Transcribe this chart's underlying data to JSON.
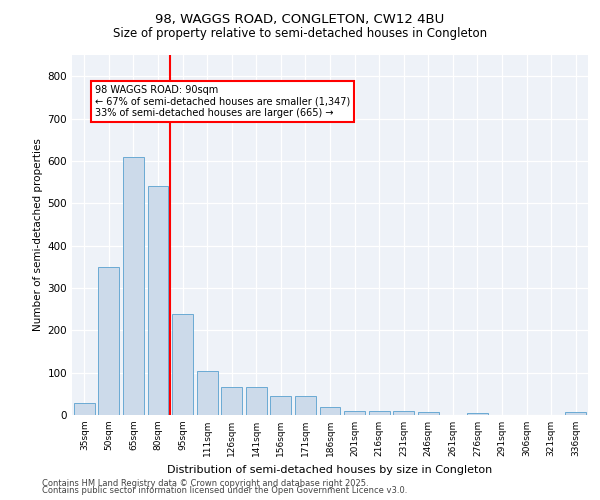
{
  "title1": "98, WAGGS ROAD, CONGLETON, CW12 4BU",
  "title2": "Size of property relative to semi-detached houses in Congleton",
  "xlabel": "Distribution of semi-detached houses by size in Congleton",
  "ylabel": "Number of semi-detached properties",
  "categories": [
    "35sqm",
    "50sqm",
    "65sqm",
    "80sqm",
    "95sqm",
    "111sqm",
    "126sqm",
    "141sqm",
    "156sqm",
    "171sqm",
    "186sqm",
    "201sqm",
    "216sqm",
    "231sqm",
    "246sqm",
    "261sqm",
    "276sqm",
    "291sqm",
    "306sqm",
    "321sqm",
    "336sqm"
  ],
  "values": [
    28,
    350,
    608,
    540,
    238,
    103,
    65,
    65,
    45,
    45,
    18,
    10,
    10,
    10,
    8,
    0,
    5,
    0,
    0,
    0,
    8
  ],
  "bar_color": "#ccdaea",
  "bar_edge_color": "#6aaad4",
  "vline_color": "red",
  "vline_position": 3.5,
  "annotation_title": "98 WAGGS ROAD: 90sqm",
  "annotation_line1": "← 67% of semi-detached houses are smaller (1,347)",
  "annotation_line2": "33% of semi-detached houses are larger (665) →",
  "ylim": [
    0,
    850
  ],
  "yticks": [
    0,
    100,
    200,
    300,
    400,
    500,
    600,
    700,
    800
  ],
  "background_color": "#eef2f8",
  "grid_color": "#ffffff",
  "footer1": "Contains HM Land Registry data © Crown copyright and database right 2025.",
  "footer2": "Contains public sector information licensed under the Open Government Licence v3.0."
}
